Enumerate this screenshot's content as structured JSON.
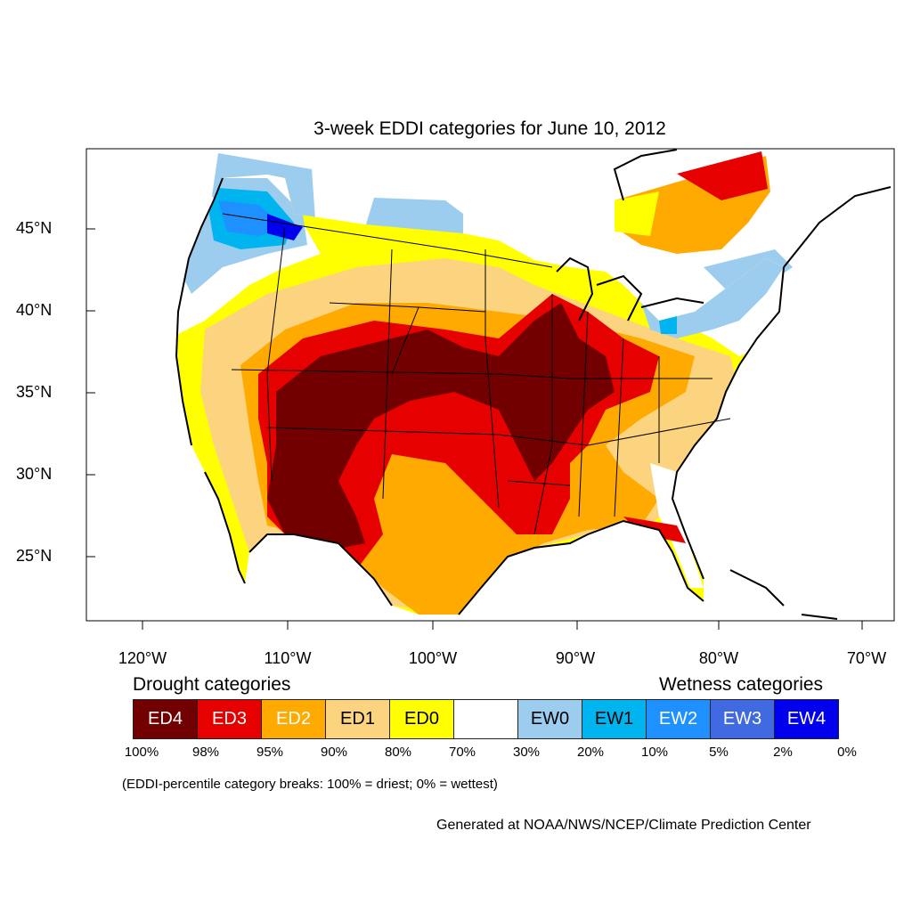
{
  "title": "3-week EDDI categories for June 10, 2012",
  "lat_labels": [
    "45°N",
    "40°N",
    "35°N",
    "30°N",
    "25°N"
  ],
  "lon_labels": [
    "120°W",
    "110°W",
    "100°W",
    "90°W",
    "80°W",
    "70°W"
  ],
  "legend": {
    "drought_heading": "Drought categories",
    "wetness_heading": "Wetness categories",
    "categories": [
      {
        "label": "ED4",
        "color": "#730000",
        "text_color": "#ffffff"
      },
      {
        "label": "ED3",
        "color": "#e60000",
        "text_color": "#ffffff"
      },
      {
        "label": "ED2",
        "color": "#ffaa00",
        "text_color": "#ffffff"
      },
      {
        "label": "ED1",
        "color": "#fcd37f",
        "text_color": "#000000"
      },
      {
        "label": "ED0",
        "color": "#ffff00",
        "text_color": "#000000"
      },
      {
        "label": "",
        "color": "#ffffff",
        "text_color": "#000000"
      },
      {
        "label": "EW0",
        "color": "#9dcdee",
        "text_color": "#000000"
      },
      {
        "label": "EW1",
        "color": "#00b4f0",
        "text_color": "#000000"
      },
      {
        "label": "EW2",
        "color": "#1e90ff",
        "text_color": "#ffffff"
      },
      {
        "label": "EW3",
        "color": "#4169e1",
        "text_color": "#ffffff"
      },
      {
        "label": "EW4",
        "color": "#0000ee",
        "text_color": "#ffffff"
      }
    ],
    "percentiles": [
      "100%",
      "98%",
      "95%",
      "90%",
      "80%",
      "70%",
      "30%",
      "20%",
      "10%",
      "5%",
      "2%",
      "0%"
    ]
  },
  "note": "(EDDI-percentile category breaks: 100% = driest; 0% = wettest)",
  "credit": "Generated at NOAA/NWS/NCEP/Climate Prediction Center"
}
